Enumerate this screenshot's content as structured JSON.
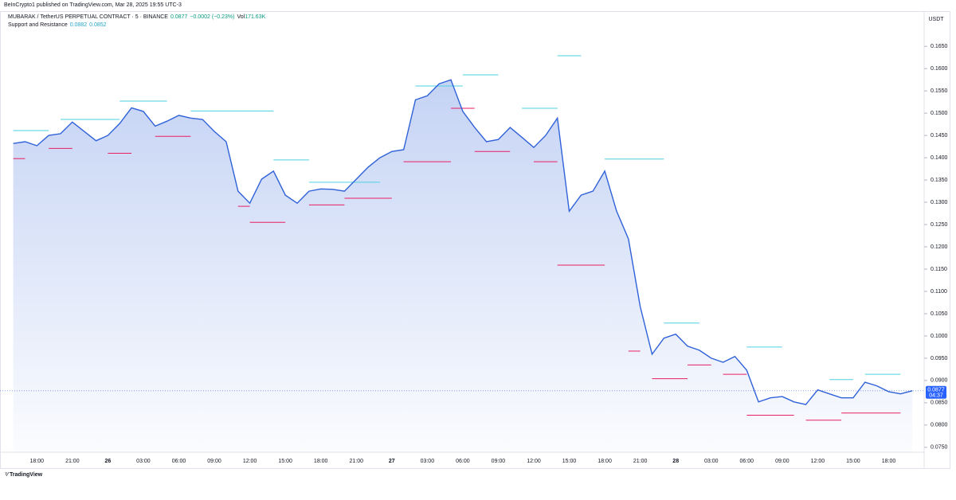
{
  "header": {
    "published": "BeInCrypto1 published on TradingView.com, Mar 28, 2025 19:55 UTC-3",
    "symbol": "MUBARAK / TetherUS PERPETUAL CONTRACT · 5 · BINANCE",
    "last": 0.0877,
    "change": "−0.0002 (−0.23%)",
    "vol_label": "Vol",
    "vol": "171.63K",
    "indicator": {
      "name": "Support and Resistance",
      "values": [
        0.0882,
        0.0852
      ]
    },
    "currency": "USDT",
    "countdown": "04:37",
    "brand": "TradingView"
  },
  "chart_data": {
    "type": "area",
    "color": "#2f62d8",
    "categories": [
      null,
      null,
      "18:00",
      null,
      null,
      "21:00",
      null,
      null,
      "26",
      null,
      null,
      "03:00",
      null,
      null,
      "06:00",
      null,
      null,
      "09:00",
      null,
      null,
      "12:00",
      null,
      null,
      "15:00",
      null,
      null,
      "18:00",
      null,
      null,
      "21:00",
      null,
      null,
      "27",
      null,
      null,
      "03:00",
      null,
      null,
      "06:00",
      null,
      null,
      "09:00",
      null,
      null,
      "12:00",
      null,
      null,
      "15:00",
      null,
      null,
      "18:00",
      null,
      null,
      "21:00",
      null,
      null,
      "28",
      null,
      null,
      "03:00",
      null,
      null,
      "06:00",
      null,
      null,
      "09:00",
      null,
      null,
      "12:00",
      null,
      null,
      "15:00",
      null,
      null,
      "18:00",
      null,
      null
    ],
    "values": [
      0.1432,
      0.1436,
      0.1427,
      0.145,
      0.1454,
      0.148,
      0.1459,
      0.1438,
      0.145,
      0.1477,
      0.1512,
      0.1504,
      0.1471,
      0.1482,
      0.1495,
      0.1489,
      0.1486,
      0.1459,
      0.1436,
      0.1325,
      0.1298,
      0.1352,
      0.137,
      0.1316,
      0.1298,
      0.1325,
      0.133,
      0.1329,
      0.1325,
      0.1352,
      0.1379,
      0.14,
      0.1414,
      0.1418,
      0.153,
      0.1539,
      0.1566,
      0.1575,
      0.1504,
      0.1468,
      0.1436,
      0.1441,
      0.1468,
      0.1446,
      0.1423,
      0.145,
      0.1489,
      0.128,
      0.1316,
      0.1325,
      0.137,
      0.128,
      0.1218,
      0.1066,
      0.0959,
      0.0995,
      0.1004,
      0.0977,
      0.0968,
      0.095,
      0.0941,
      0.0954,
      0.0923,
      0.0852,
      0.0861,
      0.0864,
      0.0852,
      0.0846,
      0.0879,
      0.087,
      0.0861,
      0.0861,
      0.0896,
      0.0888,
      0.0875,
      0.087,
      0.0877
    ],
    "resistance": {
      "color": "#4dd0e1",
      "levels": [
        {
          "x": [
            0,
            3
          ],
          "value": 0.1461
        },
        {
          "x": [
            4,
            9
          ],
          "value": 0.1486
        },
        {
          "x": [
            9,
            13
          ],
          "value": 0.1527
        },
        {
          "x": [
            15,
            22
          ],
          "value": 0.1505
        },
        {
          "x": [
            22,
            25
          ],
          "value": 0.1395
        },
        {
          "x": [
            25,
            31
          ],
          "value": 0.1345
        },
        {
          "x": [
            34,
            38
          ],
          "value": 0.1561
        },
        {
          "x": [
            38,
            41
          ],
          "value": 0.1586
        },
        {
          "x": [
            43,
            46
          ],
          "value": 0.1511
        },
        {
          "x": [
            46,
            48
          ],
          "value": 0.1629
        },
        {
          "x": [
            50,
            55
          ],
          "value": 0.1397
        },
        {
          "x": [
            55,
            58
          ],
          "value": 0.1029
        },
        {
          "x": [
            62,
            65
          ],
          "value": 0.0975
        },
        {
          "x": [
            69,
            71
          ],
          "value": 0.0902
        },
        {
          "x": [
            72,
            75
          ],
          "value": 0.0914
        }
      ]
    },
    "support": {
      "color": "#e91e63",
      "levels": [
        {
          "x": [
            0,
            1
          ],
          "value": 0.1398
        },
        {
          "x": [
            3,
            5
          ],
          "value": 0.1421
        },
        {
          "x": [
            8,
            10
          ],
          "value": 0.141
        },
        {
          "x": [
            12,
            15
          ],
          "value": 0.1448
        },
        {
          "x": [
            19,
            20
          ],
          "value": 0.1291
        },
        {
          "x": [
            20,
            23
          ],
          "value": 0.1255
        },
        {
          "x": [
            25,
            28
          ],
          "value": 0.1294
        },
        {
          "x": [
            28,
            32
          ],
          "value": 0.1309
        },
        {
          "x": [
            33,
            37
          ],
          "value": 0.1391
        },
        {
          "x": [
            37,
            39
          ],
          "value": 0.1511
        },
        {
          "x": [
            39,
            42
          ],
          "value": 0.1414
        },
        {
          "x": [
            44,
            46
          ],
          "value": 0.1391
        },
        {
          "x": [
            46,
            50
          ],
          "value": 0.1159
        },
        {
          "x": [
            52,
            53
          ],
          "value": 0.0966
        },
        {
          "x": [
            54,
            57
          ],
          "value": 0.0904
        },
        {
          "x": [
            57,
            59
          ],
          "value": 0.0935
        },
        {
          "x": [
            60,
            62
          ],
          "value": 0.0914
        },
        {
          "x": [
            62,
            66
          ],
          "value": 0.0822
        },
        {
          "x": [
            67,
            70
          ],
          "value": 0.0811
        },
        {
          "x": [
            70,
            75
          ],
          "value": 0.0827
        }
      ]
    },
    "ylim": [
      0.0739,
      0.1729
    ],
    "yticks": [
      {
        "value": 0.075,
        "label": "0.0750"
      },
      {
        "value": 0.08,
        "label": "0.0800"
      },
      {
        "value": 0.085,
        "label": "0.0850"
      },
      {
        "value": 0.09,
        "label": "0.0900"
      },
      {
        "value": 0.095,
        "label": "0.0950"
      },
      {
        "value": 0.1,
        "label": "0.1000"
      },
      {
        "value": 0.105,
        "label": "0.1050"
      },
      {
        "value": 0.11,
        "label": "0.1100"
      },
      {
        "value": 0.115,
        "label": "0.1150"
      },
      {
        "value": 0.12,
        "label": "0.1200"
      },
      {
        "value": 0.125,
        "label": "0.1250"
      },
      {
        "value": 0.13,
        "label": "0.1300"
      },
      {
        "value": 0.135,
        "label": "0.1350"
      },
      {
        "value": 0.14,
        "label": "0.1400"
      },
      {
        "value": 0.145,
        "label": "0.1450"
      },
      {
        "value": 0.15,
        "label": "0.1500"
      },
      {
        "value": 0.155,
        "label": "0.1550"
      },
      {
        "value": 0.16,
        "label": "0.1600"
      },
      {
        "value": 0.165,
        "label": "0.1650"
      }
    ]
  }
}
